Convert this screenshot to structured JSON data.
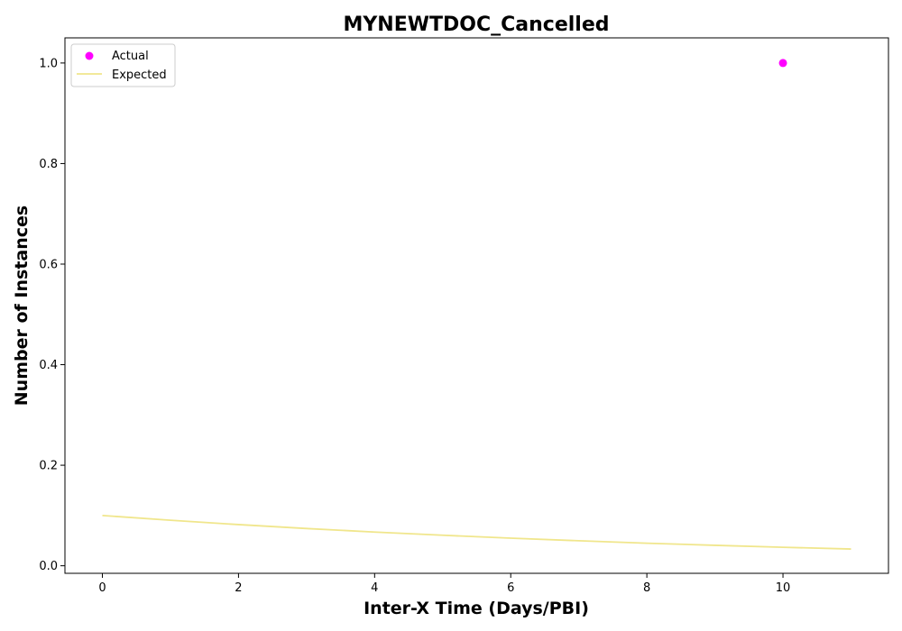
{
  "chart_data": {
    "type": "scatter",
    "title": "MYNEWTDOC_Cancelled",
    "xlabel": "Inter-X Time (Days/PBI)",
    "ylabel": "Number of Instances",
    "xlim": [
      -0.55,
      11.55
    ],
    "ylim": [
      -0.015,
      1.05
    ],
    "x_ticks": [
      0,
      2,
      4,
      6,
      8,
      10
    ],
    "y_ticks": [
      0.0,
      0.2,
      0.4,
      0.6,
      0.8,
      1.0
    ],
    "grid": false,
    "legend": {
      "placement": "top-left",
      "entries": [
        "Actual",
        "Expected"
      ]
    },
    "series": [
      {
        "name": "Actual",
        "kind": "scatter",
        "color": "#ff00ff",
        "x": [
          10
        ],
        "y": [
          1.0
        ]
      },
      {
        "name": "Expected",
        "kind": "line",
        "color": "#f0e68c",
        "x": [
          0,
          1,
          2,
          3,
          4,
          5,
          6,
          7,
          8,
          9,
          10,
          11
        ],
        "y": [
          0.1,
          0.0905,
          0.0819,
          0.0741,
          0.067,
          0.0607,
          0.0549,
          0.0497,
          0.0449,
          0.0407,
          0.0368,
          0.0333
        ]
      }
    ]
  }
}
